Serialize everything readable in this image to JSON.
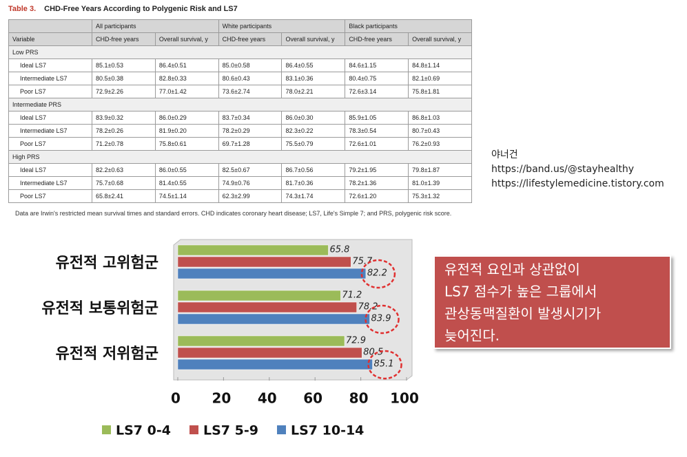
{
  "table": {
    "number": "Table 3.",
    "title": "CHD-Free Years According to Polygenic Risk and LS7",
    "groups": [
      "All participants",
      "White participants",
      "Black participants"
    ],
    "columns": [
      "Variable",
      "CHD-free years",
      "Overall survival, y",
      "CHD-free years",
      "Overall survival, y",
      "CHD-free years",
      "Overall survival, y"
    ],
    "sections": [
      {
        "label": "Low PRS",
        "rows": [
          [
            "Ideal LS7",
            "85.1±0.53",
            "86.4±0.51",
            "85.0±0.58",
            "86.4±0.55",
            "84.6±1.15",
            "84.8±1.14"
          ],
          [
            "Intermediate LS7",
            "80.5±0.38",
            "82.8±0.33",
            "80.6±0.43",
            "83.1±0.36",
            "80.4±0.75",
            "82.1±0.69"
          ],
          [
            "Poor LS7",
            "72.9±2.26",
            "77.0±1.42",
            "73.6±2.74",
            "78.0±2.21",
            "72.6±3.14",
            "75.8±1.81"
          ]
        ]
      },
      {
        "label": "Intermediate PRS",
        "rows": [
          [
            "Ideal LS7",
            "83.9±0.32",
            "86.0±0.29",
            "83.7±0.34",
            "86.0±0.30",
            "85.9±1.05",
            "86.8±1.03"
          ],
          [
            "Intermediate LS7",
            "78.2±0.26",
            "81.9±0.20",
            "78.2±0.29",
            "82.3±0.22",
            "78.3±0.54",
            "80.7±0.43"
          ],
          [
            "Poor LS7",
            "71.2±0.78",
            "75.8±0.61",
            "69.7±1.28",
            "75.5±0.79",
            "72.6±1.01",
            "76.2±0.93"
          ]
        ]
      },
      {
        "label": "High PRS",
        "rows": [
          [
            "Ideal LS7",
            "82.2±0.63",
            "86.0±0.55",
            "82.5±0.67",
            "86.7±0.56",
            "79.2±1.95",
            "79.8±1.87"
          ],
          [
            "Intermediate LS7",
            "75.7±0.68",
            "81.4±0.55",
            "74.9±0.76",
            "81.7±0.36",
            "78.2±1.36",
            "81.0±1.39"
          ],
          [
            "Poor LS7",
            "65.8±2.41",
            "74.5±1.14",
            "62.3±2.99",
            "74.3±1.74",
            "72.6±1.20",
            "75.3±1.32"
          ]
        ]
      }
    ],
    "note": "Data are Irwin's restricted mean survival times and standard errors. CHD indicates coronary heart disease; LS7, Life's Simple 7; and PRS, polygenic risk score."
  },
  "credits": [
    "야너건",
    "https://band.us/@stayhealthy",
    "https://lifestylemedicine.tistory.com"
  ],
  "callout": [
    "유전적 요인과 상관없이",
    "LS7 점수가 높은 그룹에서",
    "관상동맥질환이 발생시기가",
    "늦어진다."
  ],
  "chart_data": {
    "type": "barh",
    "categories": [
      "유전적 고위험군",
      "유전적 보통위험군",
      "유전적 저위험군"
    ],
    "series": [
      {
        "name": "LS7 0-4",
        "color": "#9bbb59",
        "values": [
          65.8,
          71.2,
          72.9
        ]
      },
      {
        "name": "LS7 5-9",
        "color": "#c0504d",
        "values": [
          75.7,
          78.2,
          80.5
        ]
      },
      {
        "name": "LS7 10-14",
        "color": "#4f81bd",
        "values": [
          82.2,
          83.9,
          85.1
        ]
      }
    ],
    "xlim": [
      0,
      100
    ],
    "xticks": [
      0,
      20,
      40,
      60,
      80,
      100
    ],
    "legend": "bottom"
  }
}
